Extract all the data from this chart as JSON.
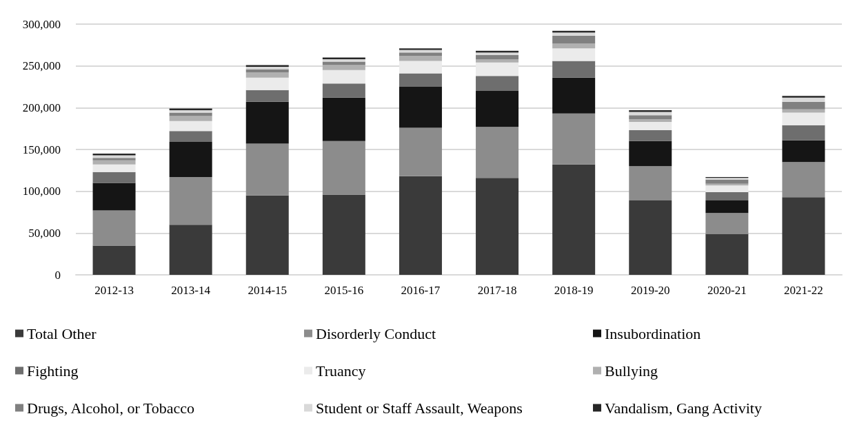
{
  "chart_data": {
    "type": "bar",
    "stacked": true,
    "categories": [
      "2012-13",
      "2013-14",
      "2014-15",
      "2015-16",
      "2016-17",
      "2017-18",
      "2018-19",
      "2019-20",
      "2020-21",
      "2021-22"
    ],
    "series": [
      {
        "name": "Total Other",
        "color": "#3a3a3a",
        "values": [
          35000,
          60000,
          95000,
          96000,
          118000,
          116000,
          132000,
          89000,
          49000,
          93000
        ]
      },
      {
        "name": "Disorderly Conduct",
        "color": "#8c8c8c",
        "values": [
          42000,
          57000,
          62000,
          64000,
          58000,
          61000,
          61000,
          41000,
          25000,
          42000
        ]
      },
      {
        "name": "Insubordination",
        "color": "#151515",
        "values": [
          33000,
          42000,
          50000,
          52000,
          49000,
          43000,
          43000,
          30000,
          15000,
          26000
        ]
      },
      {
        "name": "Fighting",
        "color": "#6e6e6e",
        "values": [
          13000,
          13000,
          14000,
          17000,
          16000,
          18000,
          20000,
          13000,
          10000,
          18000
        ]
      },
      {
        "name": "Truancy",
        "color": "#ebebeb",
        "values": [
          9000,
          12000,
          15000,
          16000,
          15000,
          16000,
          15000,
          10000,
          8000,
          15000
        ]
      },
      {
        "name": "Bullying",
        "color": "#b0b0b0",
        "values": [
          5000,
          6000,
          6000,
          6000,
          6000,
          4000,
          6000,
          3000,
          2000,
          4000
        ]
      },
      {
        "name": "Drugs, Alcohol, or Tobacco",
        "color": "#808080",
        "values": [
          3000,
          4000,
          4000,
          4000,
          4000,
          5000,
          9000,
          5000,
          5000,
          9000
        ]
      },
      {
        "name": "Student or Staff Assault, Weapons",
        "color": "#d9d9d9",
        "values": [
          3000,
          3000,
          3000,
          3000,
          3000,
          3000,
          4000,
          4000,
          2000,
          5000
        ]
      },
      {
        "name": "Vandalism, Gang Activity",
        "color": "#262626",
        "values": [
          2000,
          2000,
          2000,
          2000,
          2000,
          2000,
          2000,
          2000,
          1000,
          2000
        ]
      }
    ],
    "ylim": [
      0,
      300000
    ],
    "yticks": [
      {
        "value": 0,
        "label": "0"
      },
      {
        "value": 50000,
        "label": "50,000"
      },
      {
        "value": 100000,
        "label": "100,000"
      },
      {
        "value": 150000,
        "label": "150,000"
      },
      {
        "value": 200000,
        "label": "200,000"
      },
      {
        "value": 250000,
        "label": "250,000"
      },
      {
        "value": 300000,
        "label": "300,000"
      }
    ],
    "grid": "y",
    "legend": "bottom"
  }
}
